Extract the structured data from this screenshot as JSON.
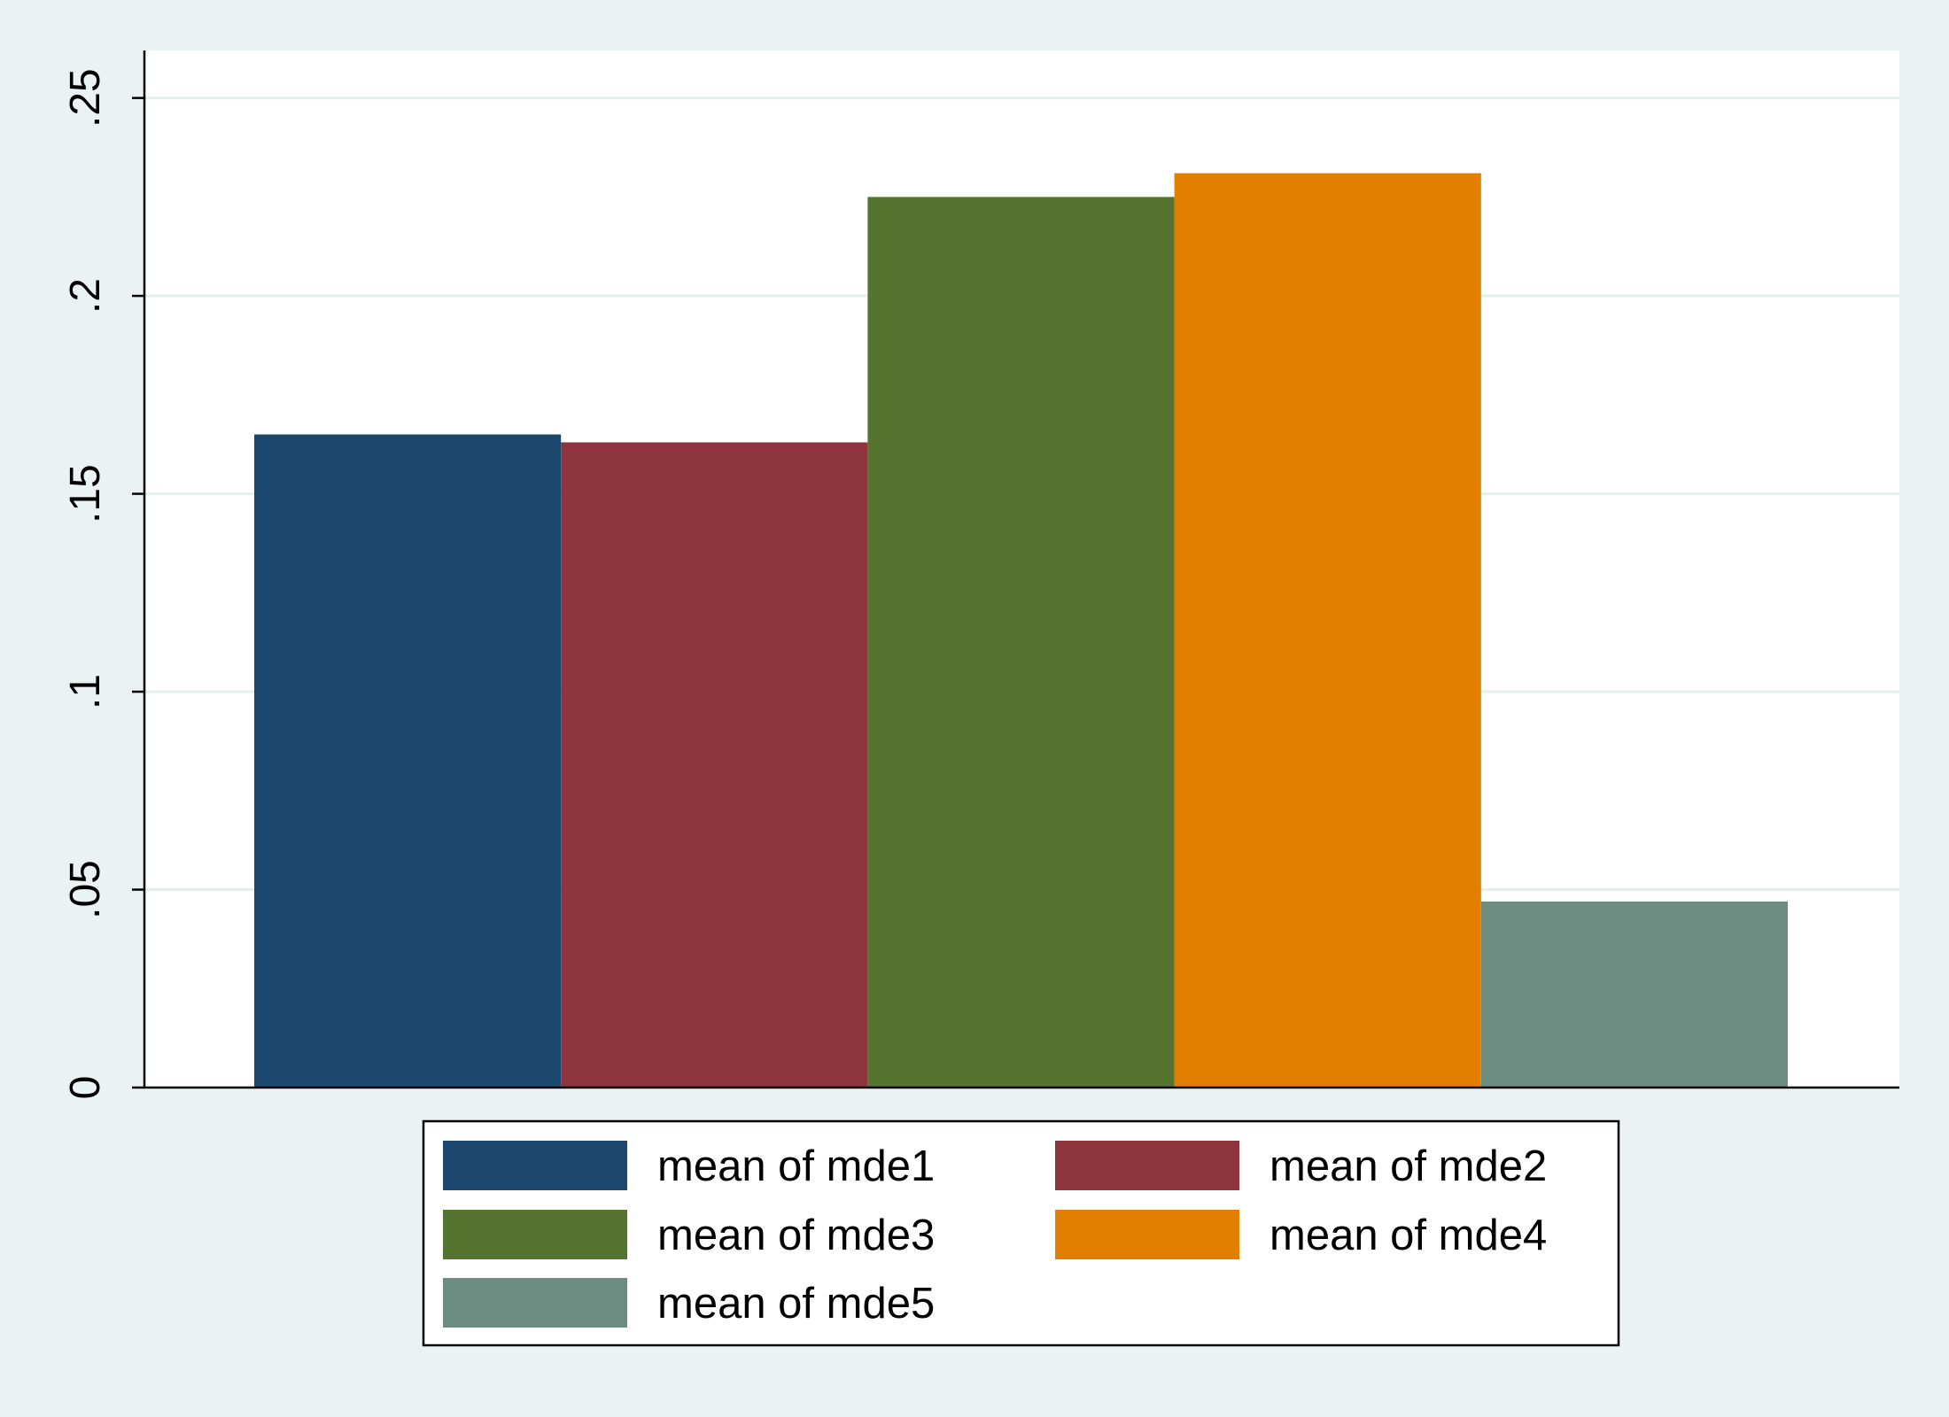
{
  "chart_data": {
    "type": "bar",
    "title": "",
    "xlabel": "",
    "ylabel": "",
    "ylim": [
      0,
      0.262
    ],
    "yticks": [
      0,
      0.05,
      0.1,
      0.15,
      0.2,
      0.25
    ],
    "ytick_labels": [
      "0",
      ".05",
      ".1",
      ".15",
      ".2",
      ".25"
    ],
    "grid": true,
    "legend_position": "bottom",
    "legend_columns": 2,
    "series": [
      {
        "name": "mean of mde1",
        "value": 0.165,
        "color": "#1c4870"
      },
      {
        "name": "mean of mde2",
        "value": 0.163,
        "color": "#8e343d"
      },
      {
        "name": "mean of mde3",
        "value": 0.225,
        "color": "#557430"
      },
      {
        "name": "mean of mde4",
        "value": 0.231,
        "color": "#e27e00"
      },
      {
        "name": "mean of mde5",
        "value": 0.047,
        "color": "#6e8d82"
      }
    ]
  }
}
